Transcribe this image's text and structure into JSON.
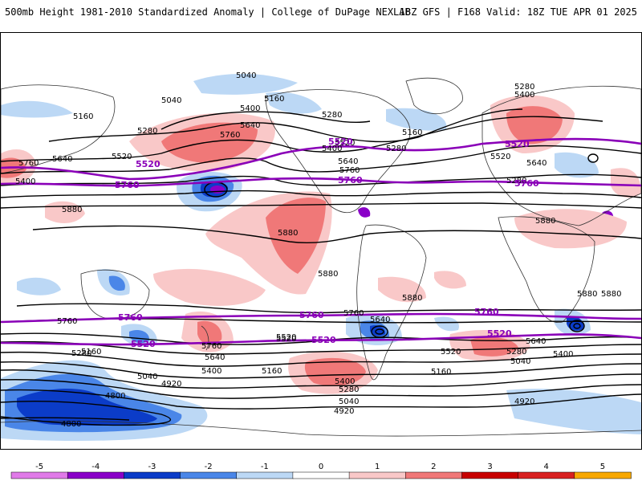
{
  "header": {
    "title_left": "500mb Height 1981-2010 Standardized Anomaly | College of DuPage NEXLAB",
    "title_right": "18Z GFS | F168 Valid: 18Z TUE APR 01 2025"
  },
  "map": {
    "projection": "global cylindrical equidistant",
    "field": "500mb height standardized anomaly",
    "contour_interval_dam": 12
  },
  "contour_labels": {
    "black": [
      "5040",
      "5040",
      "5160",
      "5160",
      "5280",
      "5280",
      "5280",
      "5280",
      "5400",
      "5400",
      "5520",
      "5640",
      "5640",
      "5760",
      "5760",
      "5880",
      "5880",
      "5880",
      "5880",
      "5880",
      "5880",
      "5760",
      "5760",
      "5640",
      "5520",
      "5160",
      "5280",
      "5760",
      "5640",
      "5400",
      "5520",
      "5040",
      "4920",
      "4800",
      "4800",
      "5160",
      "5400",
      "5280",
      "5040",
      "4920",
      "5520",
      "5640",
      "5760",
      "5280",
      "5400",
      "5040",
      "4920",
      "5160",
      "5640",
      "5400",
      "5640",
      "5280",
      "5400",
      "5520",
      "5160",
      "5880",
      "5520"
    ],
    "purple": [
      "5520",
      "5760",
      "5520",
      "5760",
      "5520",
      "5760",
      "5760",
      "5520",
      "5760",
      "5520",
      "5520",
      "5760"
    ]
  },
  "colorbar": {
    "ticks": [
      "-5",
      "-4",
      "-3",
      "-2",
      "-1",
      "0",
      "1",
      "2",
      "3",
      "4",
      "5"
    ],
    "colors": {
      "neg5": "#e07ae8",
      "neg4": "#8a00c8",
      "neg3": "#0b3cc8",
      "neg2": "#4a86e8",
      "neg1": "#bcd8f5",
      "zero": "#ffffff",
      "pos1": "#f9c8c8",
      "pos2": "#f07878",
      "pos3": "#c80000",
      "pos4": "#d82020",
      "pos5": "#f8a800"
    }
  }
}
